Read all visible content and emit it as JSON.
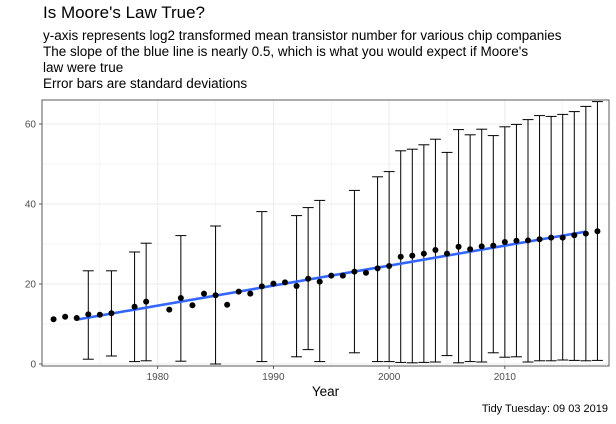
{
  "chart_data": {
    "type": "scatter",
    "title": "Is Moore's Law True?",
    "subtitle": [
      "y-axis represents log2 transformed mean transistor number for various chip companies",
      "The slope of the blue line is nearly 0.5, which is what you would expect if Moore's",
      "law were true",
      "Error bars are standard deviations"
    ],
    "caption": "Tidy Tuesday: 09 03 2019",
    "xlabel": "Year",
    "ylabel": "",
    "xlim": [
      1970,
      2019
    ],
    "ylim": [
      -0.5,
      66
    ],
    "x_ticks": [
      1980,
      1990,
      2000,
      2010
    ],
    "y_ticks": [
      0,
      20,
      40,
      60
    ],
    "grid": true,
    "colors": {
      "points": "#000000",
      "trend_line": "#3366ff",
      "error_bars": "#000000",
      "panel_border": "#333333",
      "grid": "#ebebeb"
    },
    "series": [
      {
        "x": [
          1971,
          1972,
          1973,
          1974,
          1975,
          1976,
          1978,
          1979,
          1981,
          1982,
          1983,
          1984,
          1985,
          1986,
          1987,
          1988,
          1989,
          1990,
          1991,
          1992,
          1993,
          1994,
          1995,
          1996,
          1997,
          1998,
          1999,
          2000,
          2001,
          2002,
          2003,
          2004,
          2005,
          2006,
          2007,
          2008,
          2009,
          2010,
          2011,
          2012,
          2013,
          2014,
          2015,
          2016,
          2017,
          2018
        ],
        "y": [
          11.2,
          11.8,
          11.5,
          12.4,
          12.3,
          12.7,
          14.3,
          15.6,
          13.6,
          16.5,
          14.7,
          17.6,
          17.2,
          14.8,
          18.1,
          17.6,
          19.4,
          20.1,
          20.4,
          19.5,
          21.3,
          20.6,
          22.1,
          22.1,
          23.1,
          22.8,
          23.9,
          24.5,
          26.8,
          27.1,
          27.6,
          28.5,
          27.6,
          29.3,
          28.7,
          29.4,
          29.6,
          30.5,
          30.8,
          30.9,
          31.2,
          31.6,
          31.6,
          32.2,
          32.6,
          33.2
        ],
        "error_low": [
          null,
          null,
          null,
          1.2,
          null,
          2.0,
          0.6,
          0.8,
          null,
          0.7,
          null,
          null,
          0.0,
          null,
          null,
          null,
          0.6,
          null,
          null,
          1.8,
          3.6,
          0.6,
          null,
          null,
          2.8,
          null,
          0.6,
          0.6,
          0.4,
          0.3,
          0.4,
          0.5,
          2.1,
          0.3,
          0.6,
          0.5,
          2.8,
          1.7,
          1.8,
          0.5,
          0.8,
          0.8,
          1.0,
          0.9,
          0.8,
          0.9
        ],
        "error_high": [
          null,
          null,
          null,
          23.3,
          null,
          23.3,
          28.0,
          30.2,
          null,
          32.1,
          null,
          null,
          34.5,
          null,
          null,
          null,
          38.1,
          null,
          null,
          37.1,
          39.1,
          40.9,
          42.8,
          null,
          43.4,
          null,
          46.8,
          48.1,
          53.3,
          53.7,
          54.8,
          56.2,
          52.9,
          58.6,
          57.3,
          58.7,
          57.1,
          59.3,
          59.9,
          61.1,
          62.1,
          61.9,
          62.4,
          63.1,
          64.4,
          65.6
        ]
      }
    ],
    "trend_line": {
      "x": [
        1973,
        2017
      ],
      "y": [
        11.1,
        33.1
      ]
    }
  }
}
